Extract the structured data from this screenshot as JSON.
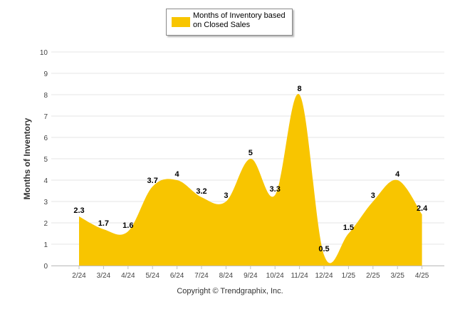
{
  "chart_data": {
    "type": "area",
    "categories": [
      "2/24",
      "3/24",
      "4/24",
      "5/24",
      "6/24",
      "7/24",
      "8/24",
      "9/24",
      "10/24",
      "11/24",
      "12/24",
      "1/25",
      "2/25",
      "3/25",
      "4/25"
    ],
    "series": [
      {
        "name": "Months of Inventory based on Closed Sales",
        "values": [
          2.3,
          1.7,
          1.6,
          3.7,
          4,
          3.2,
          3,
          5,
          3.3,
          8,
          0.5,
          1.5,
          3,
          4,
          2.4
        ]
      }
    ],
    "data_labels": [
      "2.3",
      "1.7",
      "1.6",
      "3.7",
      "4",
      "3.2",
      "3",
      "5",
      "3.3",
      "8",
      "0.5",
      "1.5",
      "3",
      "4",
      "2.4"
    ],
    "ylabel": "Months of Inventory",
    "ylim": [
      0,
      10
    ],
    "yticks": [
      "0",
      "1",
      "2",
      "3",
      "4",
      "5",
      "6",
      "7",
      "8",
      "9",
      "10"
    ],
    "grid": true,
    "legend_position": "top-center",
    "colors": {
      "fill": "#f8c500",
      "grid": "#e6e6e6",
      "axis_text": "#444444"
    }
  },
  "legend": {
    "label": "Months of Inventory based on Closed Sales",
    "swatch_color": "#f8c500"
  },
  "footer": {
    "copyright": "Copyright © Trendgraphix, Inc."
  }
}
